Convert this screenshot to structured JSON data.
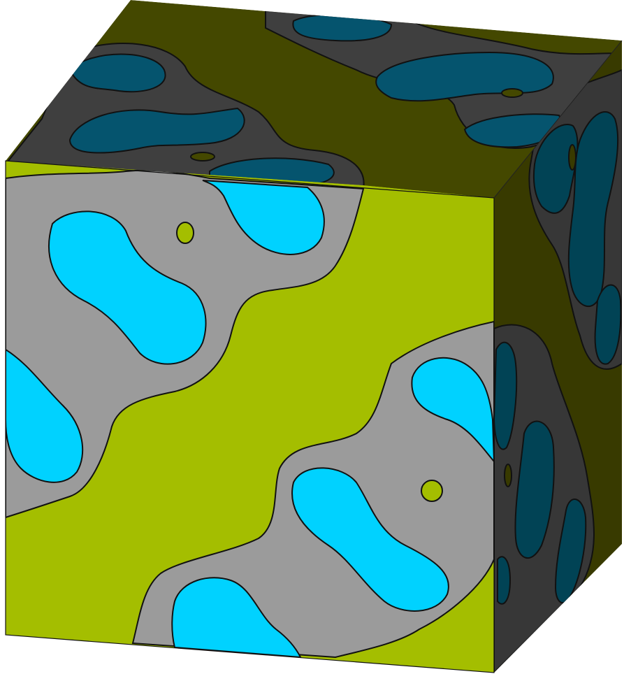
{
  "figure": {
    "kind": "3d-cube-rendering",
    "description_visible": false,
    "colors": {
      "front_matrix": "#a4be00",
      "front_phase": "#9b9b9b",
      "front_inclusion": "#00d2ff",
      "top_matrix": "#444800",
      "top_phase": "#3f3f3f",
      "top_inclusion": "#05546e",
      "side_matrix": "#383a00",
      "side_phase": "#373737",
      "side_inclusion": "#014355",
      "outline": "#111111",
      "background": "#ffffff"
    },
    "faces": [
      "front",
      "top",
      "right"
    ]
  }
}
